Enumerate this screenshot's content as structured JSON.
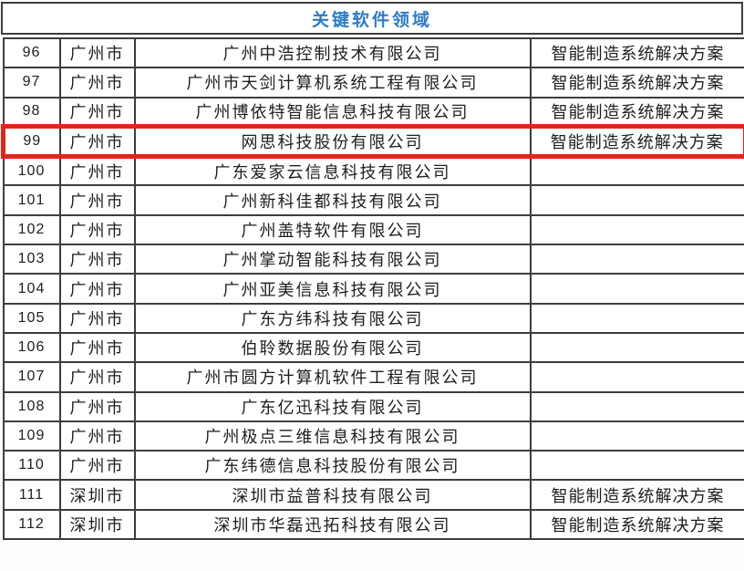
{
  "table": {
    "title": "关键软件领域",
    "highlighted_row_no": "99",
    "rows": [
      {
        "no": "96",
        "city": "广州市",
        "company": "广州中浩控制技术有限公司",
        "solution": "智能制造系统解决方案"
      },
      {
        "no": "97",
        "city": "广州市",
        "company": "广州市天剑计算机系统工程有限公司",
        "solution": "智能制造系统解决方案"
      },
      {
        "no": "98",
        "city": "广州市",
        "company": "广州博依特智能信息科技有限公司",
        "solution": "智能制造系统解决方案"
      },
      {
        "no": "99",
        "city": "广州市",
        "company": "网思科技股份有限公司",
        "solution": "智能制造系统解决方案"
      },
      {
        "no": "100",
        "city": "广州市",
        "company": "广东爱家云信息科技有限公司",
        "solution": ""
      },
      {
        "no": "101",
        "city": "广州市",
        "company": "广州新科佳都科技有限公司",
        "solution": ""
      },
      {
        "no": "102",
        "city": "广州市",
        "company": "广州盖特软件有限公司",
        "solution": ""
      },
      {
        "no": "103",
        "city": "广州市",
        "company": "广州掌动智能科技有限公司",
        "solution": ""
      },
      {
        "no": "104",
        "city": "广州市",
        "company": "广州亚美信息科技有限公司",
        "solution": ""
      },
      {
        "no": "105",
        "city": "广州市",
        "company": "广东方纬科技有限公司",
        "solution": ""
      },
      {
        "no": "106",
        "city": "广州市",
        "company": "伯聆数据股份有限公司",
        "solution": ""
      },
      {
        "no": "107",
        "city": "广州市",
        "company": "广州市圆方计算机软件工程有限公司",
        "solution": ""
      },
      {
        "no": "108",
        "city": "广州市",
        "company": "广东亿迅科技有限公司",
        "solution": ""
      },
      {
        "no": "109",
        "city": "广州市",
        "company": "广州极点三维信息科技有限公司",
        "solution": ""
      },
      {
        "no": "110",
        "city": "广州市",
        "company": "广东纬德信息科技股份有限公司",
        "solution": ""
      },
      {
        "no": "111",
        "city": "深圳市",
        "company": "深圳市益普科技有限公司",
        "solution": "智能制造系统解决方案"
      },
      {
        "no": "112",
        "city": "深圳市",
        "company": "深圳市华磊迅拓科技有限公司",
        "solution": "智能制造系统解决方案"
      }
    ]
  },
  "colors": {
    "title_blue": "#2E7BC9",
    "highlight_red": "#E1251B",
    "grid_border": "#3D3D3D"
  }
}
